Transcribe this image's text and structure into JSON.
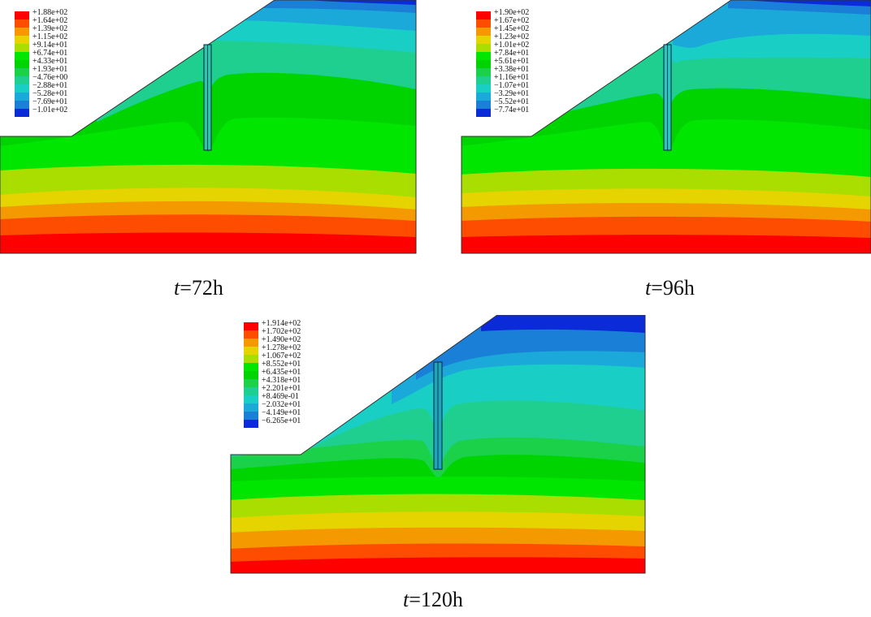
{
  "figure": {
    "panels": [
      {
        "id": "panel-72h",
        "caption_var": "t",
        "caption_rest": "=72h",
        "legend": [
          "+1.88e+02",
          "+1.64e+02",
          "+1.39e+02",
          "+1.15e+02",
          "+9.14e+01",
          "+6.74e+01",
          "+4.33e+01",
          "+1.93e+01",
          "−4.76e+00",
          "−2.88e+01",
          "−5.28e+01",
          "−7.69e+01",
          "−1.01e+02"
        ]
      },
      {
        "id": "panel-96h",
        "caption_var": "t",
        "caption_rest": "=96h",
        "legend": [
          "+1.90e+02",
          "+1.67e+02",
          "+1.45e+02",
          "+1.23e+02",
          "+1.01e+02",
          "+7.84e+01",
          "+5.61e+01",
          "+3.38e+01",
          "+1.16e+01",
          "−1.07e+01",
          "−3.29e+01",
          "−5.52e+01",
          "−7.74e+01"
        ]
      },
      {
        "id": "panel-120h",
        "caption_var": "t",
        "caption_rest": "=120h",
        "legend": [
          "+1.914e+02",
          "+1.702e+02",
          "+1.490e+02",
          "+1.278e+02",
          "+1.067e+02",
          "+8.552e+01",
          "+6.435e+01",
          "+4.318e+01",
          "+2.201e+01",
          "+8.469e-01",
          "−2.032e+01",
          "−4.149e+01",
          "−6.265e+01"
        ]
      }
    ],
    "colors": {
      "red": "#ff0000",
      "orange_red": "#ff4d00",
      "orange": "#f49a00",
      "yellow": "#e6d400",
      "yellow_green": "#aadd00",
      "green_bright": "#00e600",
      "green": "#00d400",
      "green_mid": "#1cd14a",
      "cyan_green": "#1ecf90",
      "cyan": "#19cfc5",
      "light_blue": "#1aa9d8",
      "blue": "#1a7fd6",
      "dark_blue": "#0c2bd8"
    }
  }
}
